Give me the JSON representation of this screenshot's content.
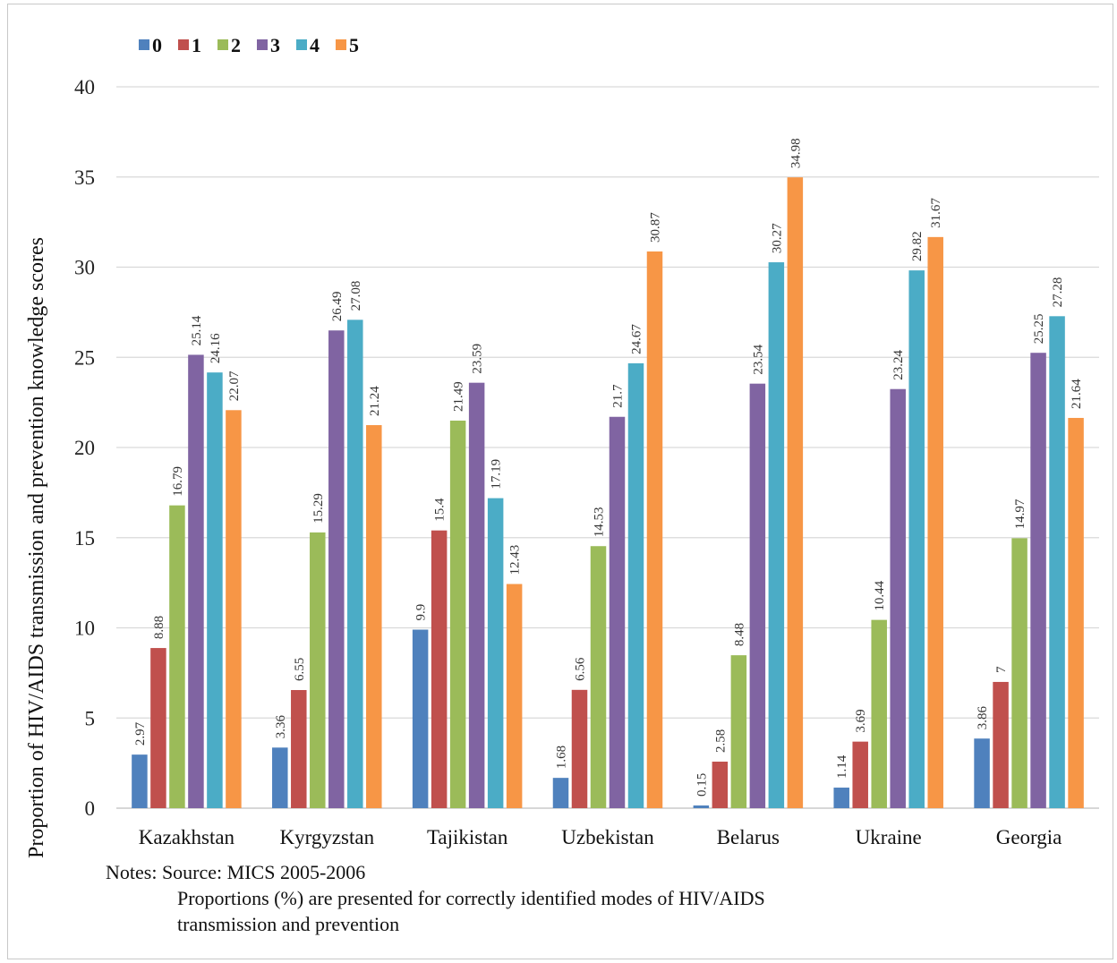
{
  "chart_data": {
    "type": "bar",
    "categories": [
      "Kazakhstan",
      "Kyrgyzstan",
      "Tajikistan",
      "Uzbekistan",
      "Belarus",
      "Ukraine",
      "Georgia"
    ],
    "series": [
      {
        "name": "0",
        "color": "#4f81bd",
        "values": [
          2.97,
          3.36,
          9.9,
          1.68,
          0.15,
          1.14,
          3.86
        ]
      },
      {
        "name": "1",
        "color": "#c0504d",
        "values": [
          8.88,
          6.55,
          15.4,
          6.56,
          2.58,
          3.69,
          7
        ]
      },
      {
        "name": "2",
        "color": "#9bbb59",
        "values": [
          16.79,
          15.29,
          21.49,
          14.53,
          8.48,
          10.44,
          14.97
        ]
      },
      {
        "name": "3",
        "color": "#8064a2",
        "values": [
          25.14,
          26.49,
          23.59,
          21.7,
          23.54,
          23.24,
          25.25
        ]
      },
      {
        "name": "4",
        "color": "#4bacc6",
        "values": [
          24.16,
          27.08,
          17.19,
          24.67,
          30.27,
          29.82,
          27.28
        ]
      },
      {
        "name": "5",
        "color": "#f79646",
        "values": [
          22.07,
          21.24,
          12.43,
          30.87,
          34.98,
          31.67,
          21.64
        ]
      }
    ],
    "data_labels": [
      [
        "2.97",
        "3.36",
        "9.9",
        "1.68",
        "0.15",
        "1.14",
        "3.86"
      ],
      [
        "8.88",
        "6.55",
        "15.4",
        "6.56",
        "2.58",
        "3.69",
        "7"
      ],
      [
        "16.79",
        "15.29",
        "21.49",
        "14.53",
        "8.48",
        "10.44",
        "14.97"
      ],
      [
        "25.14",
        "26.49",
        "23.59",
        "21.7",
        "23.54",
        "23.24",
        "25.25"
      ],
      [
        "24.16",
        "27.08",
        "17.19",
        "24.67",
        "30.27",
        "29.82",
        "27.28"
      ],
      [
        "22.07",
        "21.24",
        "12.43",
        "30.87",
        "34.98",
        "31.67",
        "21.64"
      ]
    ],
    "ylabel": "Proportion of HIV/AIDS transmission and prevention  knowledge scores",
    "xlabel": "",
    "ylim": [
      0,
      40
    ],
    "yticks": [
      "0",
      "5",
      "10",
      "15",
      "20",
      "25",
      "30",
      "35",
      "40"
    ],
    "grid": true,
    "legend_position": "top-left"
  },
  "notes": {
    "line1": "Notes: Source: MICS 2005-2006",
    "line2": "Proportions (%) are presented for correctly identified modes of HIV/AIDS",
    "line3": "transmission and prevention"
  }
}
